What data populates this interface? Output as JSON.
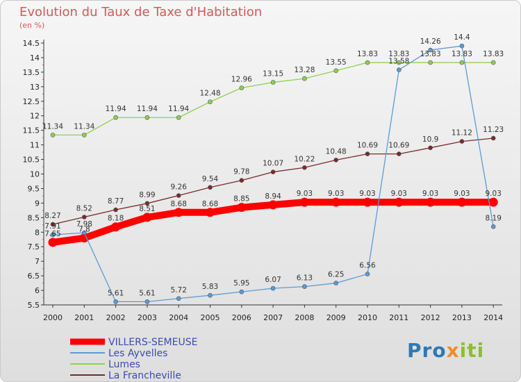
{
  "title": "Evolution du Taux de Taxe d'Habitation",
  "subtitle": "(en %)",
  "logo": {
    "p": "Pro",
    "x": "x",
    "t": "iti"
  },
  "chart_data": {
    "type": "line",
    "x": [
      2000,
      2001,
      2002,
      2003,
      2004,
      2005,
      2006,
      2007,
      2008,
      2009,
      2010,
      2011,
      2012,
      2013,
      2014
    ],
    "ylim": [
      5.5,
      14.5
    ],
    "yticks": [
      5.5,
      6,
      6.5,
      7,
      7.5,
      8,
      8.5,
      9,
      9.5,
      10,
      10.5,
      11,
      11.5,
      12,
      12.5,
      13,
      13.5,
      14,
      14.5
    ],
    "grid": false,
    "legend_position": "bottom-left",
    "series": [
      {
        "name": "VILLERS-SEMEUSE",
        "color": "#ff0000",
        "values": [
          7.65,
          7.8,
          8.18,
          8.51,
          8.68,
          8.68,
          8.85,
          8.94,
          9.03,
          9.03,
          9.03,
          9.03,
          9.03,
          9.03,
          9.03
        ],
        "labels": [
          "7.65",
          "7.8",
          "8.18",
          "8.51",
          "8.68",
          "8.68",
          "8.85",
          "8.94",
          "9.03",
          "9.03",
          "9.03",
          "9.03",
          "9.03",
          "9.03",
          "9.03"
        ]
      },
      {
        "name": "Les Ayvelles",
        "color": "#5b9bd5",
        "values": [
          7.91,
          7.98,
          5.61,
          5.61,
          5.72,
          5.83,
          5.95,
          6.07,
          6.13,
          6.25,
          6.56,
          13.58,
          14.26,
          14.4,
          8.19
        ],
        "labels": [
          "7.91",
          "7.98",
          "5.61",
          "5.61",
          "5.72",
          "5.83",
          "5.95",
          "6.07",
          "6.13",
          "6.25",
          "6.56",
          "13.58",
          "14.26",
          "14.4",
          "8.19"
        ]
      },
      {
        "name": "Lumes",
        "color": "#8fd14f",
        "values": [
          11.34,
          11.34,
          11.94,
          11.94,
          11.94,
          12.48,
          12.96,
          13.15,
          13.28,
          13.55,
          13.83,
          13.83,
          13.83,
          13.83,
          13.83
        ],
        "labels": [
          "11.34",
          "11.34",
          "11.94",
          "11.94",
          "11.94",
          "12.48",
          "12.96",
          "13.15",
          "13.28",
          "13.55",
          "13.83",
          "13.83",
          "13.83",
          "13.83",
          "13.83"
        ]
      },
      {
        "name": "La Francheville",
        "color": "#7a2a2a",
        "values": [
          8.27,
          8.52,
          8.77,
          8.99,
          9.26,
          9.54,
          9.78,
          10.07,
          10.22,
          10.48,
          10.69,
          10.69,
          10.9,
          11.12,
          11.23
        ],
        "labels": [
          "8.27",
          "8.52",
          "8.77",
          "8.99",
          "9.26",
          "9.54",
          "9.78",
          "10.07",
          "10.22",
          "10.48",
          "10.69",
          "10.69",
          "10.9",
          "11.12",
          "11.23"
        ]
      }
    ]
  }
}
